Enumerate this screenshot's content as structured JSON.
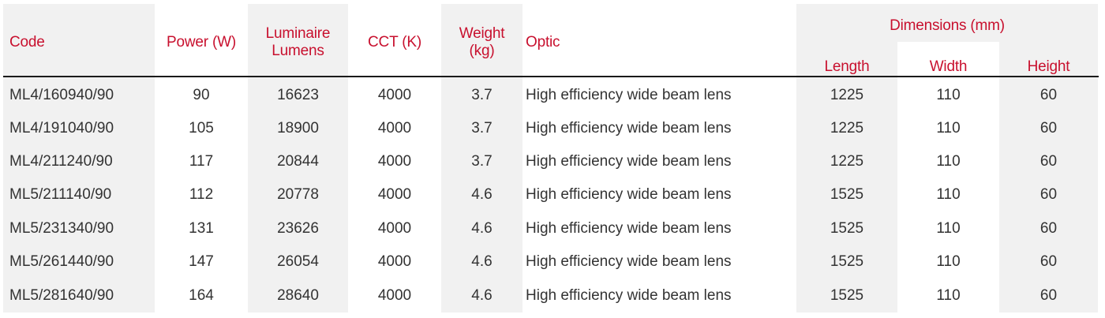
{
  "table": {
    "headers": {
      "code": "Code",
      "power": "Power (W)",
      "lumens_line1": "Luminaire",
      "lumens_line2": "Lumens",
      "cct": "CCT (K)",
      "weight_line1": "Weight",
      "weight_line2": "(kg)",
      "optic": "Optic",
      "dimensions": "Dimensions (mm)",
      "length": "Length",
      "width": "Width",
      "height": "Height"
    },
    "rows": [
      {
        "code": "ML4/160940/90",
        "power": "90",
        "lumens": "16623",
        "cct": "4000",
        "weight": "3.7",
        "optic": "High efficiency wide beam lens",
        "length": "1225",
        "width": "110",
        "height": "60"
      },
      {
        "code": "ML4/191040/90",
        "power": "105",
        "lumens": "18900",
        "cct": "4000",
        "weight": "3.7",
        "optic": "High efficiency wide beam lens",
        "length": "1225",
        "width": "110",
        "height": "60"
      },
      {
        "code": "ML4/211240/90",
        "power": "117",
        "lumens": "20844",
        "cct": "4000",
        "weight": "3.7",
        "optic": "High efficiency wide beam lens",
        "length": "1225",
        "width": "110",
        "height": "60"
      },
      {
        "code": "ML5/211140/90",
        "power": "112",
        "lumens": "20778",
        "cct": "4000",
        "weight": "4.6",
        "optic": "High efficiency wide beam lens",
        "length": "1525",
        "width": "110",
        "height": "60"
      },
      {
        "code": "ML5/231340/90",
        "power": "131",
        "lumens": "23626",
        "cct": "4000",
        "weight": "4.6",
        "optic": "High efficiency wide beam lens",
        "length": "1525",
        "width": "110",
        "height": "60"
      },
      {
        "code": "ML5/261440/90",
        "power": "147",
        "lumens": "26054",
        "cct": "4000",
        "weight": "4.6",
        "optic": "High efficiency wide beam lens",
        "length": "1525",
        "width": "110",
        "height": "60"
      },
      {
        "code": "ML5/281640/90",
        "power": "164",
        "lumens": "28640",
        "cct": "4000",
        "weight": "4.6",
        "optic": "High efficiency wide beam lens",
        "length": "1525",
        "width": "110",
        "height": "60"
      }
    ]
  },
  "colors": {
    "header_text": "#c8102e",
    "body_text": "#333333",
    "band": "#f1f1f1"
  }
}
